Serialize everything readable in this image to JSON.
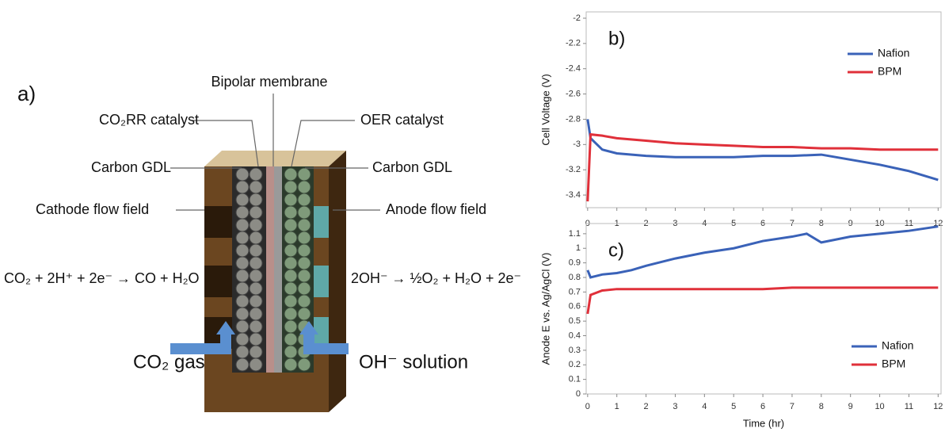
{
  "diagram": {
    "panel_label": "a)",
    "labels": {
      "membrane": "Bipolar membrane",
      "cathode_catalyst": "CO₂RR catalyst",
      "anode_catalyst": "OER catalyst",
      "cathode_gdl": "Carbon GDL",
      "anode_gdl": "Carbon GDL",
      "cathode_flow": "Cathode flow field",
      "anode_flow": "Anode flow field",
      "cathode_reaction": "CO₂ + 2H⁺ + 2e⁻ → CO + H₂O",
      "anode_reaction": "2OH⁻ → ½O₂ + H₂O + 2e⁻",
      "cathode_feed": "CO₂ gas",
      "anode_feed": "OH⁻ solution"
    }
  },
  "chart_data": [
    {
      "type": "line",
      "panel_label": "b)",
      "y_label": "Cell Voltage (V)",
      "x": [
        0,
        0.1,
        0.5,
        1,
        2,
        3,
        4,
        5,
        6,
        7,
        8,
        9,
        10,
        11,
        12
      ],
      "series": [
        {
          "name": "Nafion",
          "color": "#3a62b8",
          "values": [
            -2.8,
            -2.95,
            -3.04,
            -3.07,
            -3.09,
            -3.1,
            -3.1,
            -3.1,
            -3.09,
            -3.09,
            -3.08,
            -3.12,
            -3.16,
            -3.21,
            -3.28
          ]
        },
        {
          "name": "BPM",
          "color": "#e0303a",
          "values": [
            -3.45,
            -2.92,
            -2.93,
            -2.95,
            -2.97,
            -2.99,
            -3.0,
            -3.01,
            -3.02,
            -3.02,
            -3.03,
            -3.03,
            -3.04,
            -3.04,
            -3.04
          ]
        }
      ],
      "xlim": [
        -0.05,
        12.1
      ],
      "xticks": [
        0,
        1,
        2,
        3,
        4,
        5,
        6,
        7,
        8,
        9,
        10,
        11,
        12
      ],
      "ylim": [
        -3.5,
        -1.95
      ],
      "yticks": [
        -2,
        -2.2,
        -2.4,
        -2.6,
        -2.8,
        -3,
        -3.2,
        -3.4
      ],
      "grid": false,
      "legend": "top-right"
    },
    {
      "type": "line",
      "panel_label": "c)",
      "x_label": "Time (hr)",
      "y_label": "Anode E vs. Ag/AgCl (V)",
      "x": [
        0,
        0.1,
        0.5,
        1,
        1.5,
        2,
        3,
        4,
        5,
        6,
        7,
        7.5,
        8,
        9,
        10,
        11,
        12
      ],
      "series": [
        {
          "name": "Nafion",
          "color": "#3a62b8",
          "values": [
            0.85,
            0.8,
            0.82,
            0.83,
            0.85,
            0.88,
            0.93,
            0.97,
            1.0,
            1.05,
            1.08,
            1.1,
            1.04,
            1.08,
            1.1,
            1.12,
            1.15
          ]
        },
        {
          "name": "BPM",
          "color": "#e0303a",
          "values": [
            0.55,
            0.68,
            0.71,
            0.72,
            0.72,
            0.72,
            0.72,
            0.72,
            0.72,
            0.72,
            0.73,
            0.73,
            0.73,
            0.73,
            0.73,
            0.73,
            0.73
          ]
        }
      ],
      "xlim": [
        -0.05,
        12.1
      ],
      "xticks": [
        0,
        1,
        2,
        3,
        4,
        5,
        6,
        7,
        8,
        9,
        10,
        11,
        12
      ],
      "ylim": [
        0,
        1.17
      ],
      "yticks": [
        0,
        0.1,
        0.2,
        0.3,
        0.4,
        0.5,
        0.6,
        0.7,
        0.8,
        0.9,
        1,
        1.1
      ],
      "grid": false,
      "legend": "bottom-right"
    }
  ]
}
